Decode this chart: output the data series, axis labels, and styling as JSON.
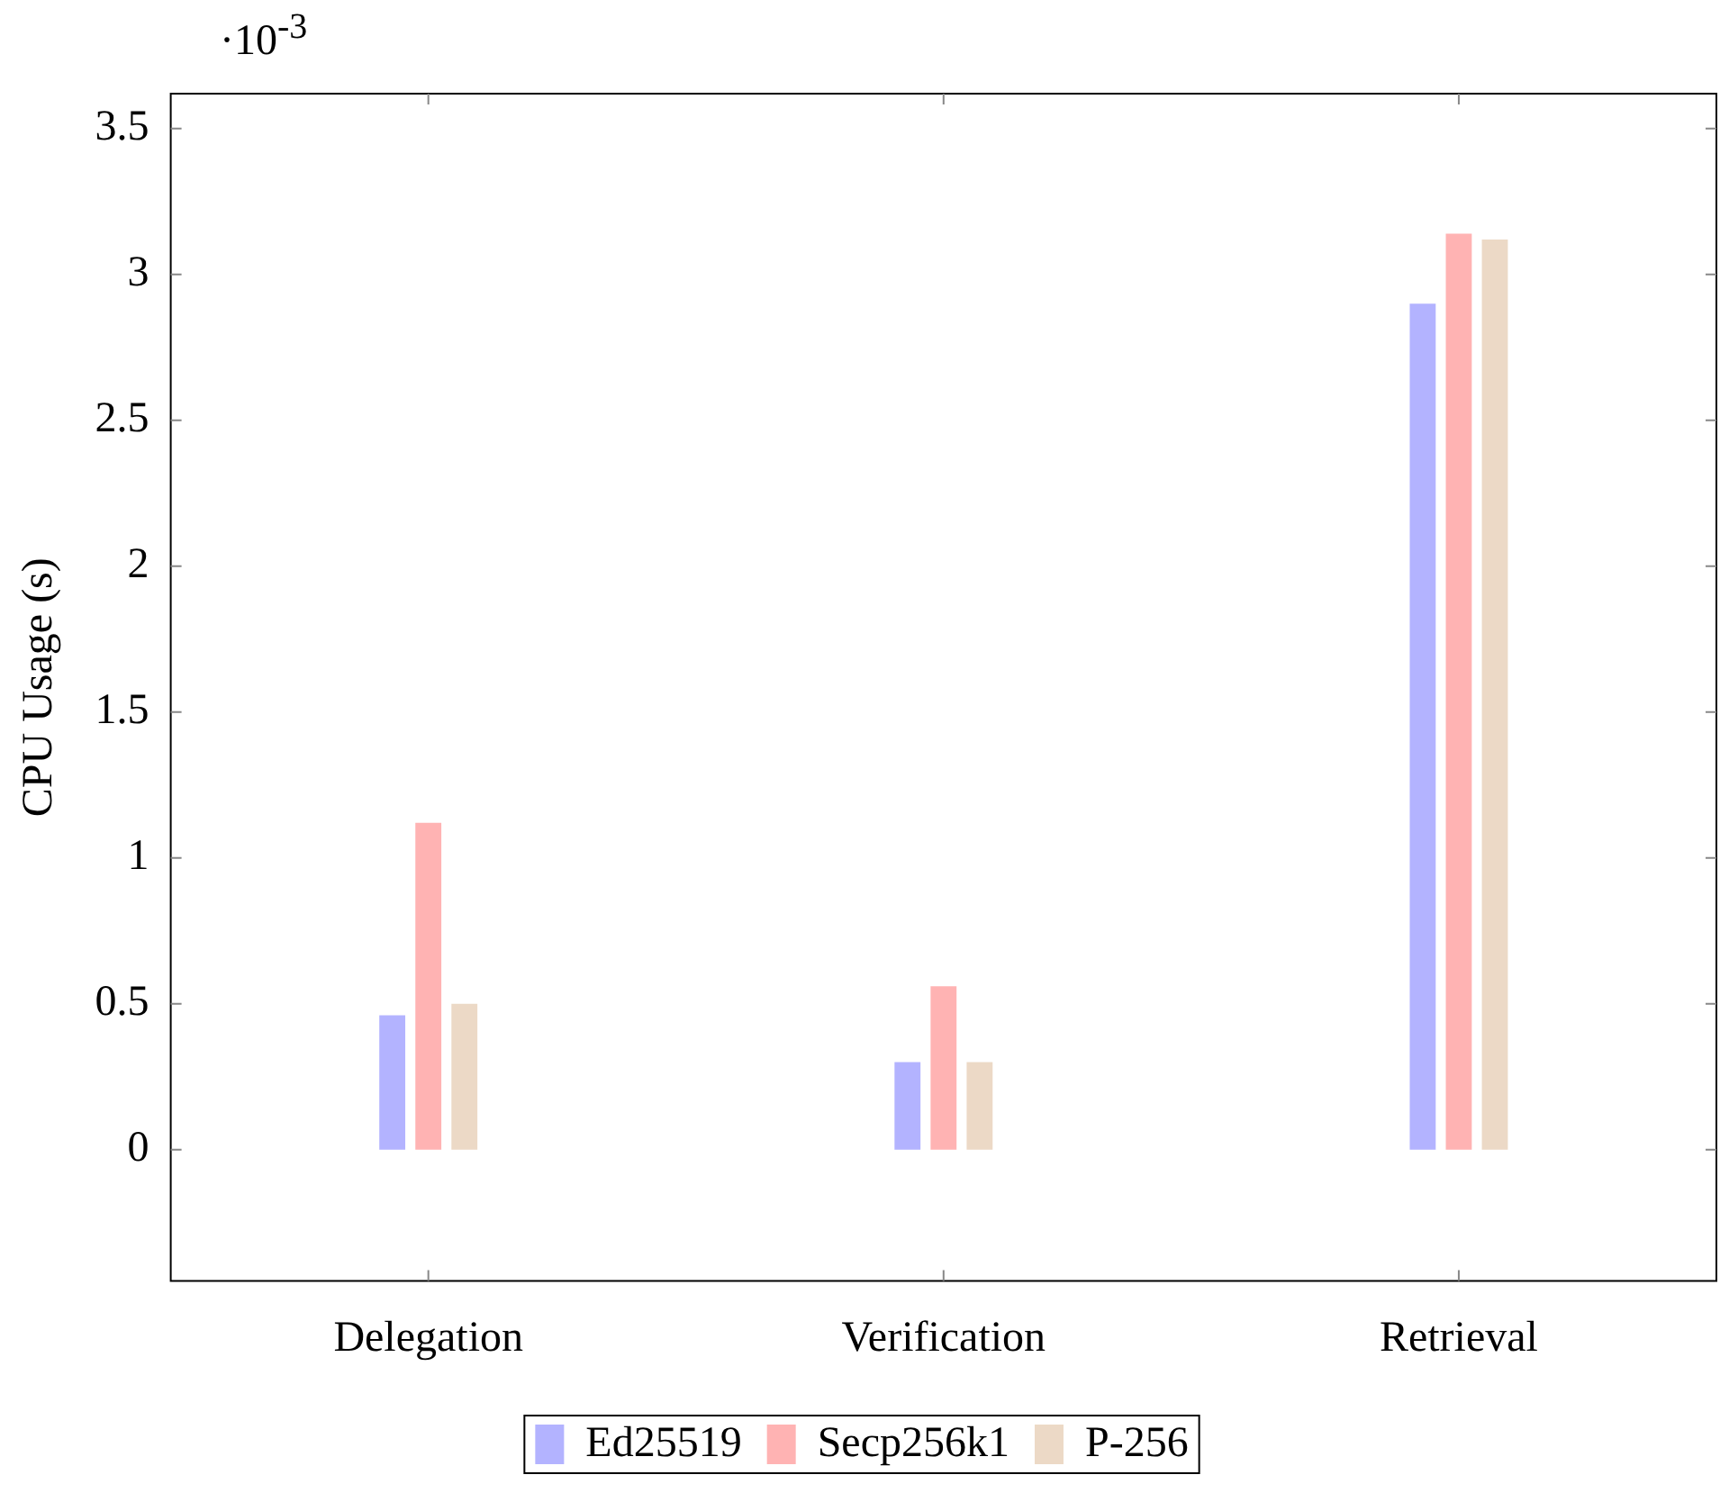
{
  "chart_data": {
    "type": "bar",
    "categories": [
      "Delegation",
      "Verification",
      "Retrieval"
    ],
    "series": [
      {
        "name": "Ed25519",
        "color": "#b3b3ff",
        "values": [
          0.46,
          0.3,
          2.9
        ]
      },
      {
        "name": "Secp256k1",
        "color": "#ffb3b3",
        "values": [
          1.12,
          0.56,
          3.14
        ]
      },
      {
        "name": "P-256",
        "color": "#ecd9c6",
        "values": [
          0.5,
          0.3,
          3.12
        ]
      }
    ],
    "ylabel": "CPU Usage (s)",
    "ylim": [
      -0.45,
      3.62
    ],
    "yticks": [
      0,
      {
        "value": 0.5,
        "label": "0.5"
      },
      1,
      {
        "value": 1.5,
        "label": "1.5"
      },
      2,
      {
        "value": 2.5,
        "label": "2.5"
      },
      3,
      {
        "value": 3.5,
        "label": "3.5"
      }
    ],
    "annotations": [
      "·10$^{-3}$"
    ],
    "grid": false,
    "legend": "bottom"
  }
}
